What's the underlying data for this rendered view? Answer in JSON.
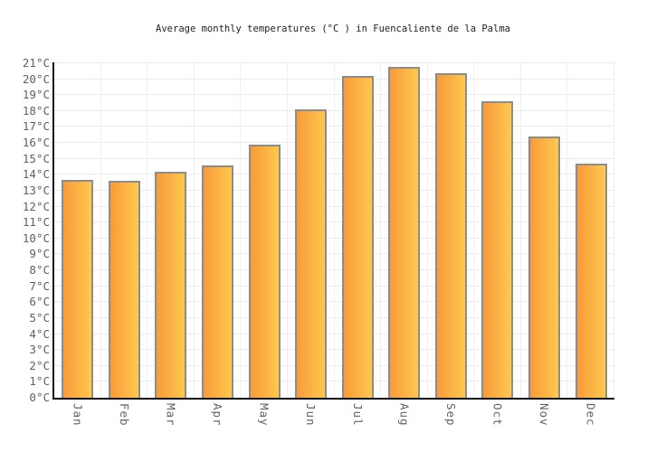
{
  "chart_data": {
    "type": "bar",
    "title": "Average monthly temperatures (°C ) in Fuencaliente de la Palma",
    "categories": [
      "Jan",
      "Feb",
      "Mar",
      "Apr",
      "May",
      "Jun",
      "Jul",
      "Aug",
      "Sep",
      "Oct",
      "Nov",
      "Dec"
    ],
    "values": [
      13.7,
      13.6,
      14.2,
      14.6,
      15.9,
      18.1,
      20.2,
      20.8,
      20.4,
      18.6,
      16.4,
      14.7
    ],
    "xlabel": "",
    "ylabel": "",
    "unit": "°C",
    "ylim": [
      0,
      21
    ],
    "ytick_step": 1,
    "yticks": [
      "0°C",
      "1°C",
      "2°C",
      "3°C",
      "4°C",
      "5°C",
      "6°C",
      "7°C",
      "8°C",
      "9°C",
      "10°C",
      "11°C",
      "12°C",
      "13°C",
      "14°C",
      "15°C",
      "16°C",
      "17°C",
      "18°C",
      "19°C",
      "20°C",
      "21°C"
    ],
    "grid": true,
    "legend_position": "none",
    "colors": {
      "bar_gradient_left": "#f89b3b",
      "bar_gradient_right": "#fec84d",
      "bar_border": "#8c8c8c",
      "gridline": "#ebebeb",
      "axis": "#111111",
      "tick_label": "#606060",
      "title": "#222222",
      "background": "#ffffff"
    }
  }
}
